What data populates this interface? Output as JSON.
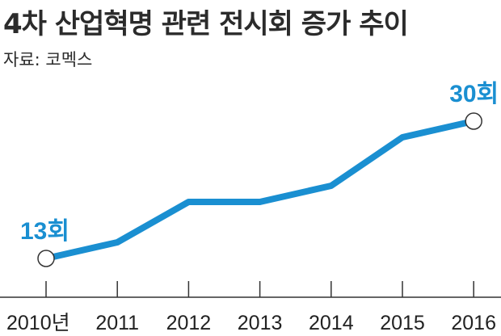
{
  "title": "4차 산업혁명 관련 전시회 증가 추이",
  "source": "자료: 코멕스",
  "colors": {
    "line": "#1a8fd1",
    "label": "#1a8fd1",
    "axis": "#333333"
  },
  "chart_data": {
    "type": "line",
    "categories": [
      "2010년",
      "2011",
      "2012",
      "2013",
      "2014",
      "2015",
      "2016"
    ],
    "series": [
      {
        "values": [
          13,
          15,
          20,
          20,
          22,
          28,
          30
        ]
      }
    ],
    "annotations": [
      {
        "index": 0,
        "text": "13회"
      },
      {
        "index": 6,
        "text": "30회"
      }
    ],
    "ylim": [
      10,
      33
    ],
    "grid": false,
    "markers": "open-circle-endpoints"
  }
}
